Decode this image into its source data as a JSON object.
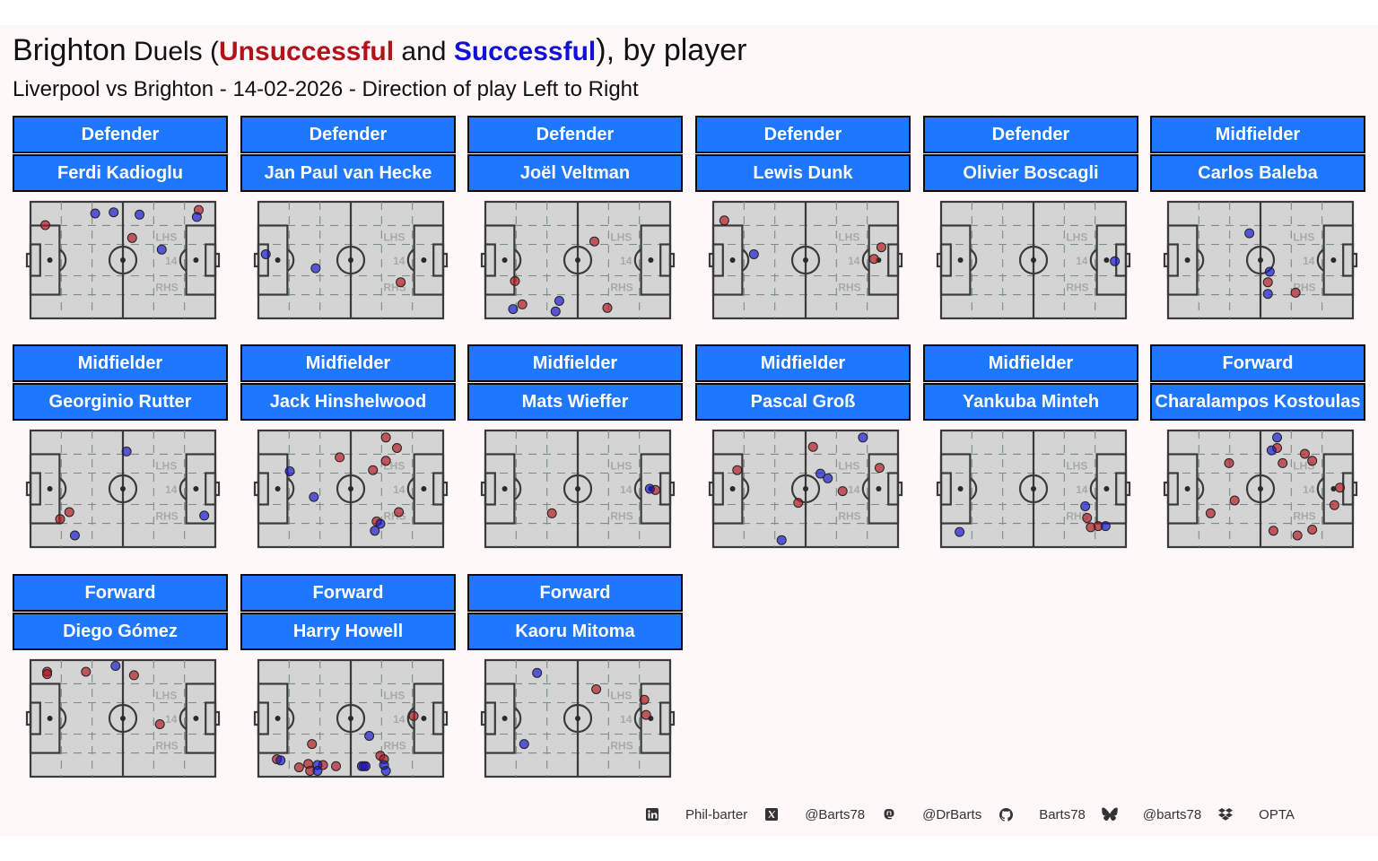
{
  "title": {
    "team": "Brighton",
    "duels": "Duels (",
    "unsuccessful": "Unsuccessful",
    "and": " and ",
    "successful": "Successful",
    "close": "), by player"
  },
  "subtitle": "Liverpool vs Brighton - 14-02-2026 - Direction of play Left to Right",
  "pitch_labels": {
    "lhs": "LHS",
    "mid": "14",
    "rhs": "RHS"
  },
  "colors": {
    "unsuccessful": "#b3121b",
    "successful": "#1212d6",
    "strip": "#1e78ff",
    "pitch": "#d4d4d4"
  },
  "footer": [
    {
      "icon": "linkedin-icon",
      "text": "Phil-barter"
    },
    {
      "icon": "x-icon",
      "text": "@Barts78"
    },
    {
      "icon": "mastodon-icon",
      "text": "@DrBarts"
    },
    {
      "icon": "github-icon",
      "text": "Barts78"
    },
    {
      "icon": "bluesky-icon",
      "text": "@barts78"
    },
    {
      "icon": "dropbox-icon",
      "text": "OPTA"
    }
  ],
  "chart_data": {
    "type": "scatter",
    "x_range": [
      0,
      100
    ],
    "y_range": [
      0,
      100
    ],
    "series": [
      {
        "name": "Unsuccessful",
        "color": "#b3121b"
      },
      {
        "name": "Successful",
        "color": "#1212d6"
      }
    ],
    "panels": [
      {
        "position": "Defender",
        "player": "Ferdi Kadioglu",
        "points": [
          {
            "x": 8,
            "y": 80,
            "s": 0
          },
          {
            "x": 55,
            "y": 69,
            "s": 0
          },
          {
            "x": 91,
            "y": 93,
            "s": 0
          },
          {
            "x": 35,
            "y": 90,
            "s": 1
          },
          {
            "x": 45,
            "y": 91,
            "s": 1
          },
          {
            "x": 59,
            "y": 89,
            "s": 1
          },
          {
            "x": 71,
            "y": 59,
            "s": 1
          },
          {
            "x": 90,
            "y": 87,
            "s": 1
          }
        ]
      },
      {
        "position": "Defender",
        "player": "Jan Paul van Hecke",
        "points": [
          {
            "x": 77,
            "y": 31,
            "s": 0
          },
          {
            "x": 4,
            "y": 55,
            "s": 1
          },
          {
            "x": 31,
            "y": 43,
            "s": 1
          }
        ]
      },
      {
        "position": "Defender",
        "player": "Joël Veltman",
        "points": [
          {
            "x": 59,
            "y": 66,
            "s": 0
          },
          {
            "x": 16,
            "y": 32,
            "s": 0
          },
          {
            "x": 20,
            "y": 12,
            "s": 0
          },
          {
            "x": 66,
            "y": 9,
            "s": 0
          },
          {
            "x": 15,
            "y": 8,
            "s": 1
          },
          {
            "x": 40,
            "y": 15,
            "s": 1
          },
          {
            "x": 38,
            "y": 6,
            "s": 1
          }
        ]
      },
      {
        "position": "Defender",
        "player": "Lewis Dunk",
        "points": [
          {
            "x": 6,
            "y": 84,
            "s": 0
          },
          {
            "x": 91,
            "y": 61,
            "s": 0
          },
          {
            "x": 87,
            "y": 51,
            "s": 0
          },
          {
            "x": 22,
            "y": 55,
            "s": 1
          }
        ]
      },
      {
        "position": "Defender",
        "player": "Olivier Boscagli",
        "points": [
          {
            "x": 94,
            "y": 49,
            "s": 1
          }
        ]
      },
      {
        "position": "Midfielder",
        "player": "Carlos Baleba",
        "points": [
          {
            "x": 54,
            "y": 31,
            "s": 0
          },
          {
            "x": 69,
            "y": 22,
            "s": 0
          },
          {
            "x": 44,
            "y": 73,
            "s": 1
          },
          {
            "x": 55,
            "y": 40,
            "s": 1
          },
          {
            "x": 54,
            "y": 21,
            "s": 1
          }
        ]
      },
      {
        "position": "Midfielder",
        "player": "Georginio Rutter",
        "points": [
          {
            "x": 21,
            "y": 30,
            "s": 0
          },
          {
            "x": 16,
            "y": 24,
            "s": 0
          },
          {
            "x": 52,
            "y": 82,
            "s": 1
          },
          {
            "x": 94,
            "y": 27,
            "s": 1
          },
          {
            "x": 24,
            "y": 10,
            "s": 1
          }
        ]
      },
      {
        "position": "Midfielder",
        "player": "Jack Hinshelwood",
        "points": [
          {
            "x": 69,
            "y": 94,
            "s": 0
          },
          {
            "x": 75,
            "y": 85,
            "s": 0
          },
          {
            "x": 44,
            "y": 77,
            "s": 0
          },
          {
            "x": 69,
            "y": 74,
            "s": 0
          },
          {
            "x": 62,
            "y": 66,
            "s": 0
          },
          {
            "x": 76,
            "y": 30,
            "s": 0
          },
          {
            "x": 64,
            "y": 22,
            "s": 0
          },
          {
            "x": 17,
            "y": 65,
            "s": 1
          },
          {
            "x": 30,
            "y": 43,
            "s": 1
          },
          {
            "x": 66,
            "y": 20,
            "s": 1
          },
          {
            "x": 63,
            "y": 14,
            "s": 1
          }
        ]
      },
      {
        "position": "Midfielder",
        "player": "Mats Wieffer",
        "points": [
          {
            "x": 92,
            "y": 49,
            "s": 0
          },
          {
            "x": 36,
            "y": 29,
            "s": 0
          },
          {
            "x": 89,
            "y": 50,
            "s": 1
          }
        ]
      },
      {
        "position": "Midfielder",
        "player": "Pascal Groß",
        "points": [
          {
            "x": 54,
            "y": 86,
            "s": 0
          },
          {
            "x": 13,
            "y": 66,
            "s": 0
          },
          {
            "x": 90,
            "y": 68,
            "s": 0
          },
          {
            "x": 70,
            "y": 48,
            "s": 0
          },
          {
            "x": 46,
            "y": 38,
            "s": 0
          },
          {
            "x": 81,
            "y": 94,
            "s": 1
          },
          {
            "x": 58,
            "y": 63,
            "s": 1
          },
          {
            "x": 62,
            "y": 59,
            "s": 1
          },
          {
            "x": 37,
            "y": 6,
            "s": 1
          }
        ]
      },
      {
        "position": "Midfielder",
        "player": "Yankuba Minteh",
        "points": [
          {
            "x": 79,
            "y": 25,
            "s": 0
          },
          {
            "x": 85,
            "y": 18,
            "s": 0
          },
          {
            "x": 81,
            "y": 17,
            "s": 0
          },
          {
            "x": 78,
            "y": 35,
            "s": 1
          },
          {
            "x": 89,
            "y": 18,
            "s": 1
          },
          {
            "x": 10,
            "y": 13,
            "s": 1
          }
        ]
      },
      {
        "position": "Forward",
        "player": "Charalampos Kostoulas",
        "points": [
          {
            "x": 33,
            "y": 72,
            "s": 0
          },
          {
            "x": 59,
            "y": 85,
            "s": 0
          },
          {
            "x": 62,
            "y": 72,
            "s": 0
          },
          {
            "x": 74,
            "y": 80,
            "s": 0
          },
          {
            "x": 78,
            "y": 74,
            "s": 0
          },
          {
            "x": 93,
            "y": 51,
            "s": 0
          },
          {
            "x": 36,
            "y": 40,
            "s": 0
          },
          {
            "x": 90,
            "y": 36,
            "s": 0
          },
          {
            "x": 23,
            "y": 29,
            "s": 0
          },
          {
            "x": 57,
            "y": 14,
            "s": 0
          },
          {
            "x": 70,
            "y": 10,
            "s": 0
          },
          {
            "x": 78,
            "y": 15,
            "s": 0
          },
          {
            "x": 59,
            "y": 94,
            "s": 1
          },
          {
            "x": 56,
            "y": 83,
            "s": 1
          }
        ]
      },
      {
        "position": "Forward",
        "player": "Diego Gómez",
        "points": [
          {
            "x": 9,
            "y": 90,
            "s": 0
          },
          {
            "x": 9,
            "y": 88,
            "s": 0
          },
          {
            "x": 30,
            "y": 90,
            "s": 0
          },
          {
            "x": 56,
            "y": 87,
            "s": 0
          },
          {
            "x": 70,
            "y": 45,
            "s": 0
          },
          {
            "x": 46,
            "y": 95,
            "s": 1
          }
        ]
      },
      {
        "position": "Forward",
        "player": "Harry Howell",
        "points": [
          {
            "x": 84,
            "y": 52,
            "s": 0
          },
          {
            "x": 29,
            "y": 28,
            "s": 0
          },
          {
            "x": 10,
            "y": 15,
            "s": 0
          },
          {
            "x": 22,
            "y": 8,
            "s": 0
          },
          {
            "x": 27,
            "y": 11,
            "s": 0
          },
          {
            "x": 28,
            "y": 5,
            "s": 0
          },
          {
            "x": 42,
            "y": 9,
            "s": 0
          },
          {
            "x": 57,
            "y": 9,
            "s": 0
          },
          {
            "x": 66,
            "y": 18,
            "s": 0
          },
          {
            "x": 68,
            "y": 15,
            "s": 0
          },
          {
            "x": 35,
            "y": 10,
            "s": 0
          },
          {
            "x": 12,
            "y": 14,
            "s": 1
          },
          {
            "x": 60,
            "y": 35,
            "s": 1
          },
          {
            "x": 32,
            "y": 10,
            "s": 1
          },
          {
            "x": 32,
            "y": 5,
            "s": 1
          },
          {
            "x": 56,
            "y": 9,
            "s": 1
          },
          {
            "x": 68,
            "y": 10,
            "s": 1
          },
          {
            "x": 69,
            "y": 5,
            "s": 1
          },
          {
            "x": 58,
            "y": 9,
            "s": 1
          }
        ]
      },
      {
        "position": "Forward",
        "player": "Kaoru Mitoma",
        "points": [
          {
            "x": 60,
            "y": 75,
            "s": 0
          },
          {
            "x": 86,
            "y": 66,
            "s": 0
          },
          {
            "x": 87,
            "y": 53,
            "s": 0
          },
          {
            "x": 28,
            "y": 89,
            "s": 1
          },
          {
            "x": 21,
            "y": 28,
            "s": 1
          }
        ]
      }
    ]
  }
}
